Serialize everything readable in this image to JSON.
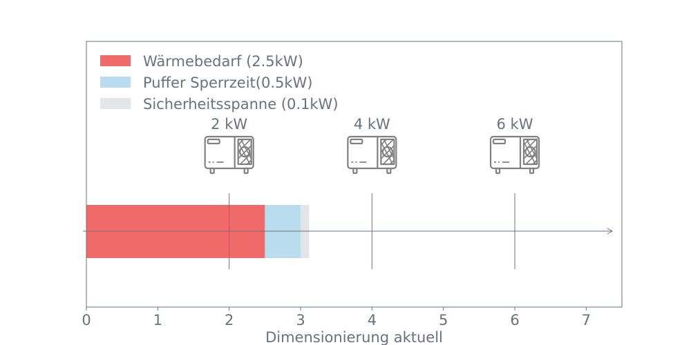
{
  "chart_data": {
    "type": "bar",
    "orientation": "horizontal-stacked",
    "xlabel": "Dimensionierung aktuell",
    "xlim": [
      0,
      7.5
    ],
    "xticks": [
      "0",
      "1",
      "2",
      "3",
      "4",
      "5",
      "6",
      "7"
    ],
    "grid": false,
    "legend_position": "top-left",
    "series": [
      {
        "name": "Wärmebedarf (2.5kW)",
        "value": 2.5,
        "color": "#f06a6a"
      },
      {
        "name": "Puffer Sperrzeit(0.5kW)",
        "value": 0.5,
        "color": "#b9dcee"
      },
      {
        "name": "Sicherheitsspanne (0.1kW)",
        "value": 0.12,
        "color": "#e3e5e8"
      }
    ],
    "markers": [
      {
        "label": "2 kW",
        "x": 2,
        "icon": "heat-pump-icon"
      },
      {
        "label": "4 kW",
        "x": 4,
        "icon": "heat-pump-icon"
      },
      {
        "label": "6 kW",
        "x": 6,
        "icon": "heat-pump-icon"
      }
    ],
    "colors": {
      "axis": "#6b7080",
      "text": "#6b7080",
      "icon": "#808080"
    }
  }
}
